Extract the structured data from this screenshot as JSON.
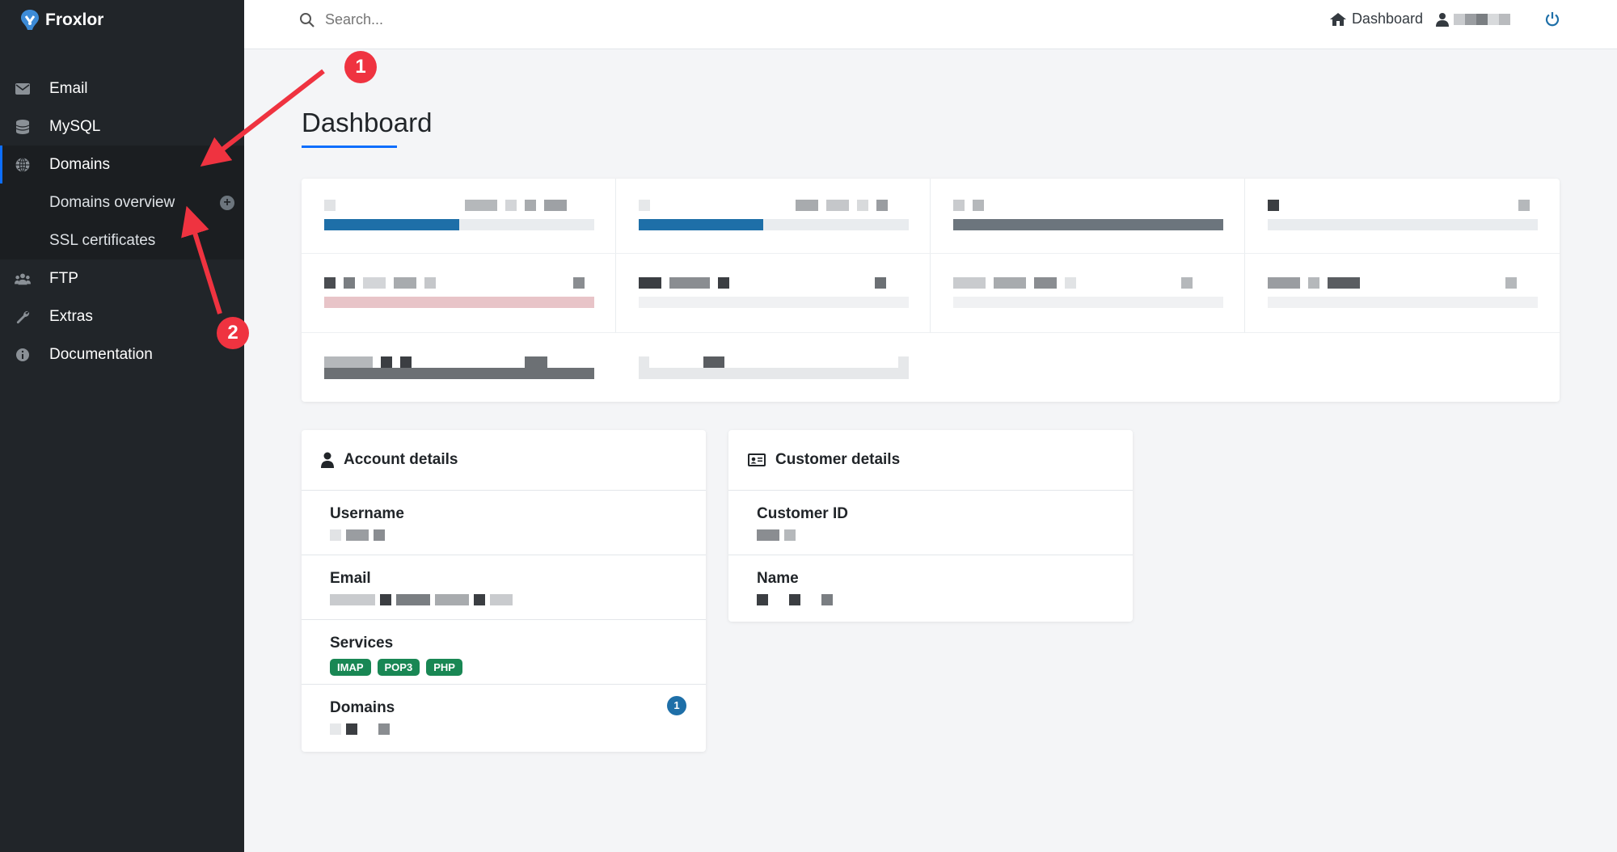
{
  "brand": {
    "name": "Froxlor"
  },
  "sidebar": {
    "items": [
      {
        "label": "Email",
        "icon": "envelope-icon"
      },
      {
        "label": "MySQL",
        "icon": "database-icon"
      },
      {
        "label": "Domains",
        "icon": "globe-icon",
        "active": true
      },
      {
        "label": "FTP",
        "icon": "users-icon"
      },
      {
        "label": "Extras",
        "icon": "wrench-icon"
      },
      {
        "label": "Documentation",
        "icon": "info-icon"
      }
    ],
    "subitems": [
      {
        "label": "Domains overview"
      },
      {
        "label": "SSL certificates"
      }
    ]
  },
  "topbar": {
    "search_placeholder": "Search...",
    "dashboard_label": "Dashboard"
  },
  "page": {
    "title": "Dashboard"
  },
  "stats": {
    "progress": [
      {
        "fraction": 0.5,
        "color": "#1e6fa8"
      },
      {
        "fraction": 0.46,
        "color": "#1e6fa8"
      },
      {
        "fraction": 1.0,
        "color": "#6c757d"
      },
      {
        "fraction": 0.0,
        "color": "#1e6fa8"
      }
    ]
  },
  "account": {
    "title": "Account details",
    "username_label": "Username",
    "email_label": "Email",
    "services_label": "Services",
    "services": [
      "IMAP",
      "POP3",
      "PHP"
    ],
    "domains_label": "Domains",
    "domains_count": "1"
  },
  "customer": {
    "title": "Customer details",
    "customer_id_label": "Customer ID",
    "name_label": "Name"
  },
  "annotations": {
    "marker1": "1",
    "marker2": "2",
    "color": "#ef3340"
  }
}
